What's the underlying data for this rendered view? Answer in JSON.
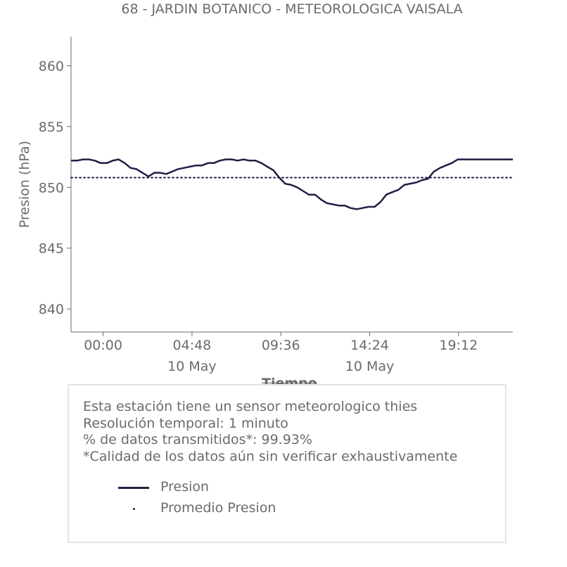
{
  "chart_data": {
    "type": "line",
    "title": "68 - JARDIN BOTANICO - METEOROLOGICA VAISALA",
    "xlabel": "Tiempo",
    "ylabel": "Presion (hPa)",
    "ylim": [
      838.1,
      862.4
    ],
    "xlim_minutes": [
      -104,
      1328
    ],
    "yticks": [
      840,
      845,
      850,
      855,
      860
    ],
    "xticks": [
      {
        "minute": 0,
        "label": "00:00",
        "sublabel": ""
      },
      {
        "minute": 288,
        "label": "04:48",
        "sublabel": "10 May"
      },
      {
        "minute": 576,
        "label": "09:36",
        "sublabel": ""
      },
      {
        "minute": 864,
        "label": "14:24",
        "sublabel": "10 May"
      },
      {
        "minute": 1152,
        "label": "19:12",
        "sublabel": ""
      }
    ],
    "series": [
      {
        "name": "Presion",
        "color": "#1f1f45",
        "style": "solid",
        "x_minutes": [
          -104,
          -85,
          -65,
          -46,
          -27,
          -8,
          12,
          31,
          50,
          70,
          89,
          108,
          127,
          147,
          166,
          185,
          205,
          224,
          243,
          262,
          282,
          301,
          320,
          340,
          359,
          378,
          397,
          417,
          436,
          455,
          475,
          494,
          513,
          532,
          552,
          571,
          590,
          610,
          629,
          648,
          667,
          687,
          706,
          725,
          745,
          764,
          783,
          802,
          822,
          841,
          860,
          880,
          899,
          918,
          937,
          957,
          976,
          995,
          1015,
          1034,
          1053,
          1072,
          1092,
          1111,
          1130,
          1150,
          1169,
          1188,
          1207,
          1227,
          1246,
          1265,
          1285,
          1304,
          1328
        ],
        "values": [
          852.2,
          852.2,
          852.3,
          852.3,
          852.2,
          852.0,
          852.0,
          852.2,
          852.3,
          852.0,
          851.6,
          851.5,
          851.2,
          850.9,
          851.2,
          851.2,
          851.1,
          851.3,
          851.5,
          851.6,
          851.7,
          851.8,
          851.8,
          852.0,
          852.0,
          852.2,
          852.3,
          852.3,
          852.2,
          852.3,
          852.2,
          852.2,
          852.0,
          851.7,
          851.4,
          850.8,
          850.3,
          850.2,
          850.0,
          849.7,
          849.4,
          849.4,
          849.0,
          848.7,
          848.6,
          848.5,
          848.5,
          848.3,
          848.2,
          848.3,
          848.4,
          848.4,
          848.8,
          849.4,
          849.6,
          849.8,
          850.2,
          850.3,
          850.4,
          850.6,
          850.7,
          851.3,
          851.6,
          851.8,
          852.0,
          852.3,
          852.3,
          852.3,
          852.3,
          852.3,
          852.3,
          852.3,
          852.3,
          852.3,
          852.3
        ]
      },
      {
        "name": "Promedio Presion",
        "color": "#1f1f45",
        "style": "dotted",
        "x_minutes": [
          -104,
          1328
        ],
        "values": [
          850.8,
          850.8
        ]
      }
    ],
    "grid": false,
    "legend": "bottom-box"
  },
  "info": {
    "line1": "Esta estación tiene un sensor meteorologico thies",
    "line2": "Resolución temporal: 1 minuto",
    "line3": "% de datos transmitidos*: 99.93%",
    "line4": "*Calidad de los datos aún sin verificar exhaustivamente"
  },
  "legend": {
    "item1": "Presion",
    "item2": "Promedio Presion"
  },
  "colors": {
    "series": "#1f1f45",
    "text": "#6b6b6b",
    "axis": "#6b6b6b",
    "box_border": "#e4e4e4"
  }
}
